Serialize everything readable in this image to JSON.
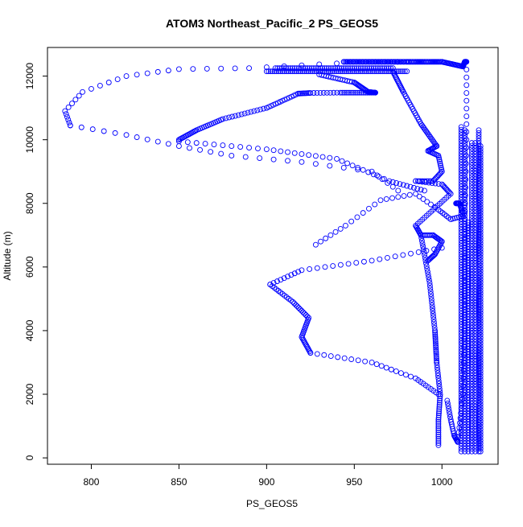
{
  "chart_data": {
    "type": "scatter",
    "title": "ATOM3 Northeast_Pacific_2 PS_GEOS5",
    "xlabel": "PS_GEOS5",
    "ylabel": "Altitude (m)",
    "xlim": [
      775,
      1032
    ],
    "ylim": [
      -200,
      12900
    ],
    "xticks": [
      800,
      850,
      900,
      950,
      1000
    ],
    "yticks": [
      0,
      2000,
      4000,
      6000,
      8000,
      10000,
      12000
    ],
    "grid": false,
    "legend": "none",
    "marker_color": "#0000ff",
    "marker": "open-circle",
    "segments": [
      {
        "points": [
          [
            1009,
            500
          ],
          [
            1012,
            2000
          ],
          [
            1013,
            4500
          ],
          [
            1013,
            7500
          ],
          [
            1014,
            10000
          ],
          [
            1014,
            12450
          ],
          [
            1013,
            12450
          ],
          [
            1012,
            12300
          ]
        ],
        "steps": 70
      },
      {
        "points": [
          [
            1012,
            12300
          ],
          [
            1000,
            12450
          ],
          [
            980,
            12450
          ],
          [
            944,
            12450
          ]
        ],
        "steps": 60
      },
      {
        "points": [
          [
            944,
            12450
          ],
          [
            975,
            12450
          ]
        ],
        "steps": 40
      },
      {
        "points": [
          [
            975,
            12450
          ],
          [
            1000,
            12450
          ]
        ],
        "steps": 28
      },
      {
        "points": [
          [
            900,
            12150
          ],
          [
            980,
            12150
          ]
        ],
        "steps": 70
      },
      {
        "points": [
          [
            905,
            12250
          ],
          [
            972,
            12250
          ]
        ],
        "steps": 55
      },
      {
        "points": [
          [
            930,
            12050
          ],
          [
            950,
            11800
          ],
          [
            958,
            11500
          ],
          [
            962,
            11480
          ]
        ],
        "steps": 45
      },
      {
        "points": [
          [
            962,
            11480
          ],
          [
            952,
            11480
          ],
          [
            942,
            11480
          ],
          [
            925,
            11470
          ],
          [
            918,
            11450
          ]
        ],
        "steps": 35
      },
      {
        "points": [
          [
            918,
            11450
          ],
          [
            900,
            11000
          ],
          [
            875,
            10650
          ],
          [
            860,
            10300
          ],
          [
            850,
            10000
          ]
        ],
        "steps": 55
      },
      {
        "points": [
          [
            940,
            12400
          ],
          [
            890,
            12250
          ],
          [
            850,
            12220
          ],
          [
            820,
            12000
          ],
          [
            795,
            11500
          ],
          [
            785,
            10900
          ],
          [
            788,
            10450
          ]
        ],
        "steps": 32
      },
      {
        "points": [
          [
            788,
            10450
          ],
          [
            820,
            10150
          ],
          [
            850,
            9800
          ],
          [
            880,
            9500
          ],
          [
            920,
            9300
          ],
          [
            960,
            9000
          ],
          [
            975,
            8400
          ]
        ],
        "steps": 32
      },
      {
        "points": [
          [
            850,
            9950
          ],
          [
            900,
            9700
          ],
          [
            940,
            9400
          ],
          [
            970,
            8700
          ],
          [
            990,
            8400
          ]
        ],
        "steps": 40
      },
      {
        "points": [
          [
            972,
            12150
          ],
          [
            978,
            11500
          ],
          [
            988,
            10500
          ],
          [
            997,
            9800
          ]
        ],
        "steps": 45
      },
      {
        "points": [
          [
            997,
            9800
          ],
          [
            992,
            9650
          ],
          [
            998,
            9500
          ],
          [
            1000,
            9000
          ],
          [
            995,
            8700
          ],
          [
            985,
            8700
          ]
        ],
        "steps": 40
      },
      {
        "points": [
          [
            985,
            8700
          ],
          [
            1000,
            8600
          ],
          [
            1005,
            8300
          ],
          [
            995,
            7800
          ],
          [
            985,
            7300
          ],
          [
            988,
            7000
          ],
          [
            995,
            7000
          ]
        ],
        "steps": 45
      },
      {
        "points": [
          [
            995,
            7000
          ],
          [
            1000,
            6800
          ],
          [
            996,
            6400
          ],
          [
            992,
            6200
          ]
        ],
        "steps": 25
      },
      {
        "points": [
          [
            928,
            6700
          ],
          [
            945,
            7300
          ],
          [
            965,
            8100
          ],
          [
            985,
            8300
          ],
          [
            998,
            7800
          ],
          [
            1005,
            7500
          ],
          [
            1012,
            7600
          ]
        ],
        "steps": 35
      },
      {
        "points": [
          [
            1000,
            6600
          ],
          [
            960,
            6200
          ],
          [
            920,
            5900
          ],
          [
            902,
            5450
          ]
        ],
        "steps": 28
      },
      {
        "points": [
          [
            902,
            5450
          ],
          [
            915,
            4900
          ],
          [
            924,
            4400
          ],
          [
            920,
            3800
          ],
          [
            925,
            3300
          ]
        ],
        "steps": 45
      },
      {
        "points": [
          [
            925,
            3300
          ],
          [
            960,
            3000
          ],
          [
            985,
            2500
          ],
          [
            998,
            2000
          ]
        ],
        "steps": 28
      },
      {
        "points": [
          [
            988,
            7000
          ],
          [
            993,
            5500
          ],
          [
            996,
            4000
          ],
          [
            997,
            3000
          ]
        ],
        "steps": 50
      },
      {
        "points": [
          [
            997,
            3000
          ],
          [
            999,
            2000
          ],
          [
            998,
            1200
          ],
          [
            998,
            400
          ]
        ],
        "steps": 35
      },
      {
        "points": [
          [
            1003,
            1800
          ],
          [
            1005,
            1200
          ],
          [
            1007,
            700
          ],
          [
            1009,
            500
          ]
        ],
        "steps": 22
      },
      {
        "points": [
          [
            1008,
            8000
          ],
          [
            1010,
            8000
          ],
          [
            1012,
            7700
          ]
        ],
        "steps": 14
      },
      {
        "points": [
          [
            1011,
            10400
          ],
          [
            1011,
            200
          ]
        ],
        "steps": 120
      },
      {
        "points": [
          [
            1013,
            10300
          ],
          [
            1013,
            200
          ]
        ],
        "steps": 120
      },
      {
        "points": [
          [
            1015,
            7400
          ],
          [
            1015,
            200
          ]
        ],
        "steps": 85
      },
      {
        "points": [
          [
            1017,
            9900
          ],
          [
            1017,
            200
          ]
        ],
        "steps": 110
      },
      {
        "points": [
          [
            1019,
            9900
          ],
          [
            1019,
            200
          ]
        ],
        "steps": 110
      },
      {
        "points": [
          [
            1021,
            10300
          ],
          [
            1021,
            200
          ]
        ],
        "steps": 120
      },
      {
        "points": [
          [
            1022,
            9800
          ],
          [
            1022,
            200
          ]
        ],
        "steps": 110
      }
    ]
  }
}
